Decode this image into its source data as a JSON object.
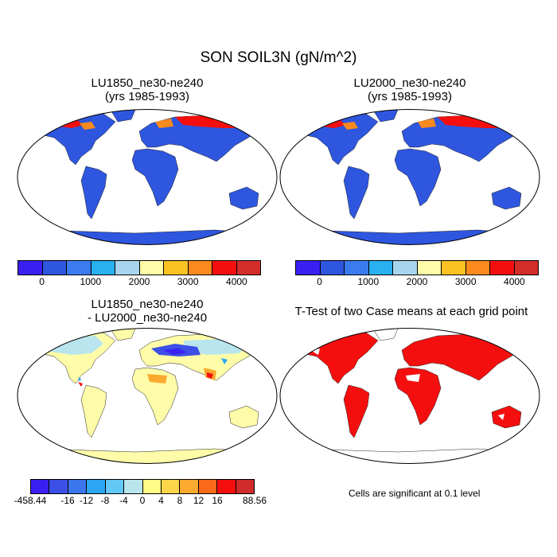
{
  "title": "SON SOIL3N (gN/m^2)",
  "panels": {
    "p1": {
      "title": "LU1850_ne30-ne240\n(yrs 1985-1993)"
    },
    "p2": {
      "title": "LU2000_ne30-ne240\n(yrs 1985-1993)"
    },
    "p3": {
      "title": "LU1850_ne30-ne240\n- LU2000_ne30-ne240"
    },
    "p4": {
      "title": "T-Test of two Case means at each grid point"
    }
  },
  "colorbar_top": {
    "colors": [
      "#3a1ff2",
      "#2e56df",
      "#3a7cf0",
      "#28b0f0",
      "#a8d5ee",
      "#fefca8",
      "#fbc222",
      "#fb8a1e",
      "#f40f0e",
      "#d32d29"
    ],
    "labels": [
      "0",
      "1000",
      "2000",
      "3000",
      "4000"
    ]
  },
  "colorbar_diff": {
    "colors": [
      "#3a1ff2",
      "#3c4fe6",
      "#3b76ee",
      "#2ba6f5",
      "#62c8f5",
      "#b9e6ee",
      "#fefb86",
      "#fdd54a",
      "#fba92f",
      "#fb6a1a",
      "#f40f0e",
      "#cf2b2b"
    ],
    "labels": [
      "-458.44",
      "-16",
      "-12",
      "-8",
      "-4",
      "0",
      "4",
      "8",
      "12",
      "16",
      "88.56"
    ]
  },
  "note": "Cells are significant at 0.1 level",
  "colors": {
    "land_low": "#2e56df",
    "ocean": "#ffffff",
    "significant": "#f40f0e",
    "diff_base": "#fefca8"
  }
}
